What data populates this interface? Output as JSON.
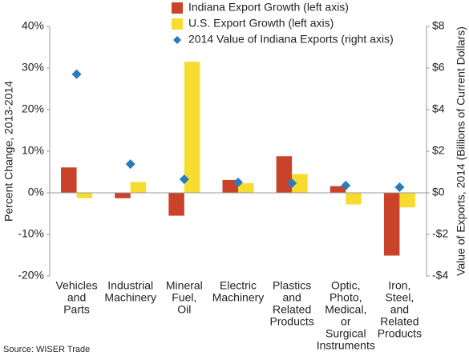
{
  "chart_data": {
    "type": "bar",
    "categories": [
      [
        "Vehicles",
        "and",
        "Parts"
      ],
      [
        "Industrial",
        "Machinery"
      ],
      [
        "Mineral",
        "Fuel,",
        "Oil"
      ],
      [
        "Electric",
        "Machinery"
      ],
      [
        "Plastics",
        "and",
        "Related",
        "Products"
      ],
      [
        "Optic,",
        "Photo,",
        "Medical,",
        "or",
        "Surgical",
        "Instruments"
      ],
      [
        "Iron,",
        "Steel,",
        "and",
        "Related",
        "Products"
      ]
    ],
    "series": [
      {
        "name": "Indiana Export Growth (left axis)",
        "color": "#c9432b",
        "values": [
          6.1,
          -1.3,
          -5.5,
          3.1,
          8.8,
          1.6,
          -15.1
        ]
      },
      {
        "name": "U.S. Export Growth (left axis)",
        "color": "#f7dc2f",
        "values": [
          -1.3,
          2.6,
          31.5,
          2.3,
          4.5,
          -2.8,
          -3.5
        ]
      },
      {
        "name": "2014 Value of Indiana Exports (right axis)",
        "color": "#2b7bba",
        "axis": "y2",
        "marker": "diamond",
        "values": [
          5.7,
          1.38,
          0.65,
          0.5,
          0.46,
          0.35,
          0.27
        ]
      }
    ],
    "ylabel": "Percent Change, 2013-2014",
    "y2label": "Value of Exports, 2014 (Billions of Current Dollars)",
    "ylim": [
      -20,
      40
    ],
    "yticks": [
      {
        "value": -20,
        "label": "-20%"
      },
      {
        "value": -10,
        "label": "-10%"
      },
      {
        "value": 0,
        "label": "0%"
      },
      {
        "value": 10,
        "label": "10%"
      },
      {
        "value": 20,
        "label": "20%"
      },
      {
        "value": 30,
        "label": "30%"
      },
      {
        "value": 40,
        "label": "40%"
      }
    ],
    "y2lim": [
      -4,
      8
    ],
    "y2ticks": [
      {
        "value": -4,
        "label": "-$4"
      },
      {
        "value": -2,
        "label": "-$2"
      },
      {
        "value": 0,
        "label": "$0"
      },
      {
        "value": 2,
        "label": "$2"
      },
      {
        "value": 4,
        "label": "$4"
      },
      {
        "value": 6,
        "label": "$6"
      },
      {
        "value": 8,
        "label": "$8"
      }
    ],
    "source": "Source: WISER Trade"
  }
}
